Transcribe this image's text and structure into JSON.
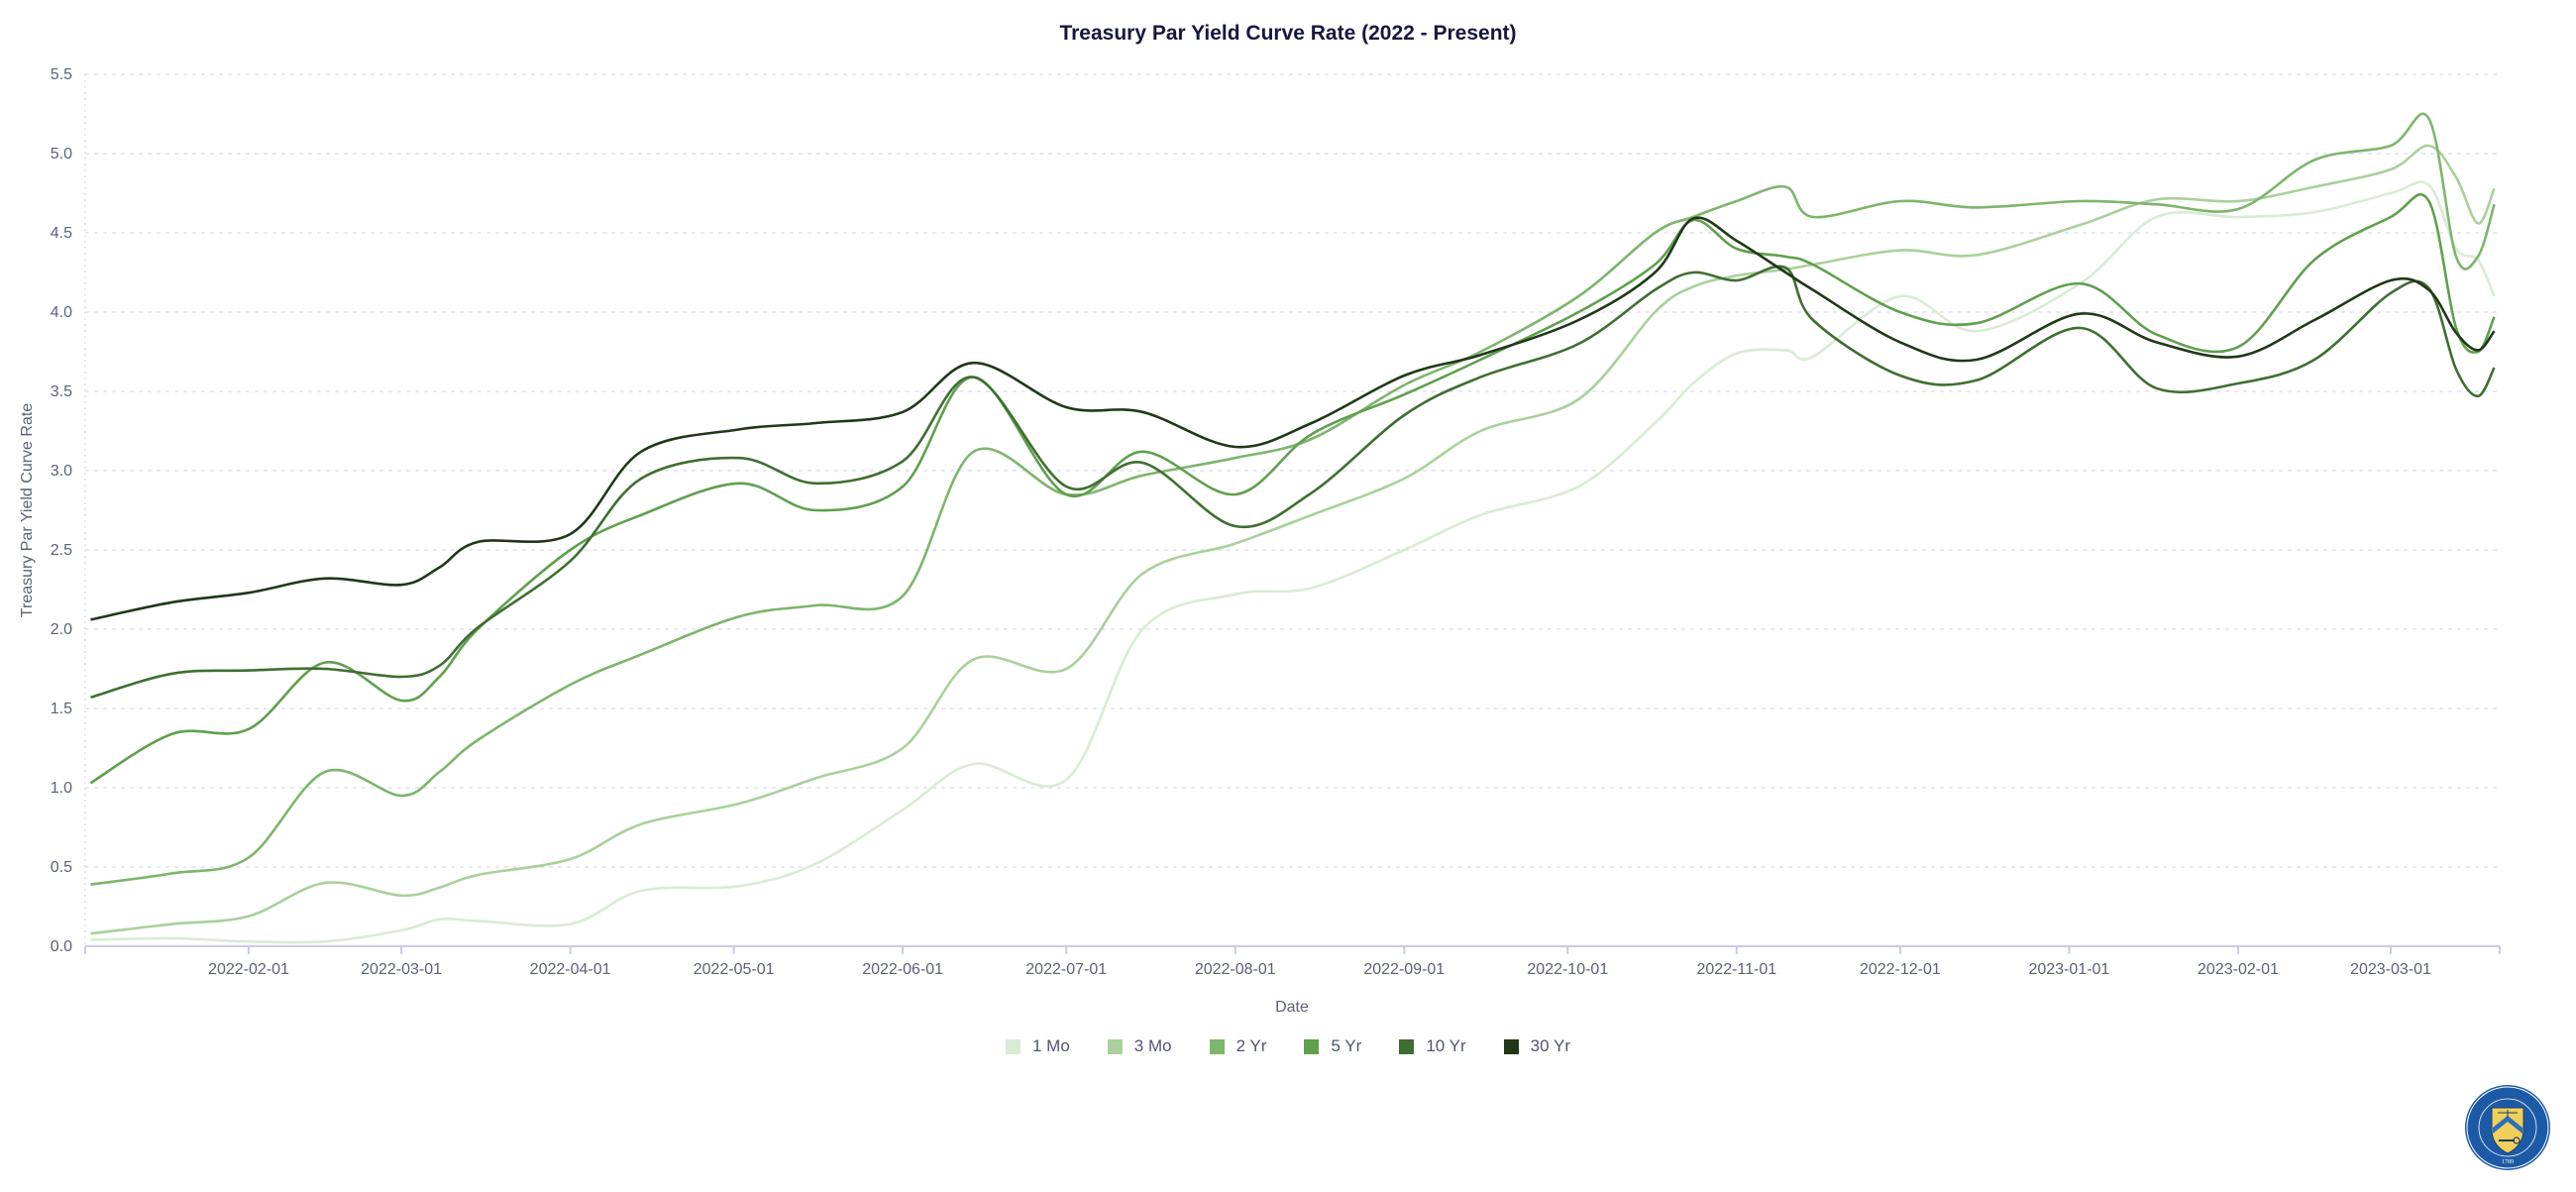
{
  "chart_data": {
    "type": "line",
    "title": "Treasury Par Yield Curve Rate (2022 - Present)",
    "xlabel": "Date",
    "ylabel": "Treasury Par Yield Curve Rate",
    "xlim": [
      "2022-01-02",
      "2023-03-21"
    ],
    "ylim": [
      0,
      5.5
    ],
    "yticks": [
      "0.0",
      "0.5",
      "1.0",
      "1.5",
      "2.0",
      "2.5",
      "3.0",
      "3.5",
      "4.0",
      "4.5",
      "5.0",
      "5.5"
    ],
    "xticks": [
      "2022-02-01",
      "2022-03-01",
      "2022-04-01",
      "2022-05-01",
      "2022-06-01",
      "2022-07-01",
      "2022-08-01",
      "2022-09-01",
      "2022-10-01",
      "2022-11-01",
      "2022-12-01",
      "2023-01-01",
      "2023-02-01",
      "2023-03-01"
    ],
    "grid": true,
    "legend_position": "bottom",
    "x": [
      "2022-01-03",
      "2022-01-18",
      "2022-02-01",
      "2022-02-15",
      "2022-03-01",
      "2022-03-08",
      "2022-03-15",
      "2022-04-01",
      "2022-04-14",
      "2022-05-02",
      "2022-05-16",
      "2022-06-01",
      "2022-06-14",
      "2022-07-01",
      "2022-07-15",
      "2022-08-01",
      "2022-08-15",
      "2022-09-01",
      "2022-09-15",
      "2022-10-03",
      "2022-10-17",
      "2022-10-24",
      "2022-11-01",
      "2022-11-10",
      "2022-11-15",
      "2022-12-01",
      "2022-12-15",
      "2023-01-03",
      "2023-01-17",
      "2023-02-01",
      "2023-02-15",
      "2023-03-01",
      "2023-03-08",
      "2023-03-13",
      "2023-03-17",
      "2023-03-20"
    ],
    "series": [
      {
        "name": "1 Mo",
        "color": "#d9ebd5",
        "values": [
          0.04,
          0.05,
          0.03,
          0.03,
          0.1,
          0.17,
          0.16,
          0.14,
          0.35,
          0.38,
          0.52,
          0.86,
          1.15,
          1.05,
          2.0,
          2.22,
          2.26,
          2.5,
          2.72,
          2.9,
          3.3,
          3.55,
          3.74,
          3.76,
          3.72,
          4.1,
          3.88,
          4.18,
          4.6,
          4.6,
          4.63,
          4.75,
          4.8,
          4.4,
          4.33,
          4.1
        ]
      },
      {
        "name": "3 Mo",
        "color": "#a9d09b",
        "values": [
          0.08,
          0.14,
          0.19,
          0.4,
          0.32,
          0.37,
          0.45,
          0.55,
          0.77,
          0.9,
          1.06,
          1.25,
          1.81,
          1.75,
          2.35,
          2.54,
          2.72,
          2.95,
          3.25,
          3.45,
          4.0,
          4.16,
          4.23,
          4.27,
          4.3,
          4.39,
          4.36,
          4.55,
          4.71,
          4.7,
          4.79,
          4.9,
          5.05,
          4.85,
          4.56,
          4.78
        ]
      },
      {
        "name": "2 Yr",
        "color": "#7db56c",
        "values": [
          0.39,
          0.46,
          0.56,
          1.1,
          0.95,
          1.1,
          1.3,
          1.65,
          1.84,
          2.08,
          2.15,
          2.21,
          3.12,
          2.85,
          2.97,
          3.08,
          3.2,
          3.54,
          3.75,
          4.1,
          4.5,
          4.6,
          4.7,
          4.79,
          4.6,
          4.7,
          4.66,
          4.7,
          4.68,
          4.65,
          4.96,
          5.05,
          5.22,
          4.35,
          4.35,
          4.68
        ]
      },
      {
        "name": "5 Yr",
        "color": "#5fa04d",
        "values": [
          1.03,
          1.34,
          1.37,
          1.79,
          1.55,
          1.7,
          2.0,
          2.5,
          2.72,
          2.92,
          2.75,
          2.9,
          3.59,
          2.85,
          3.12,
          2.85,
          3.23,
          3.48,
          3.7,
          4.0,
          4.3,
          4.58,
          4.4,
          4.35,
          4.3,
          4.0,
          3.93,
          4.18,
          3.86,
          3.78,
          4.33,
          4.6,
          4.7,
          3.9,
          3.75,
          3.97
        ]
      },
      {
        "name": "10 Yr",
        "color": "#406e32",
        "values": [
          1.57,
          1.72,
          1.74,
          1.75,
          1.7,
          1.77,
          2.01,
          2.43,
          2.95,
          3.08,
          2.92,
          3.06,
          3.59,
          2.9,
          3.05,
          2.65,
          2.86,
          3.35,
          3.59,
          3.8,
          4.14,
          4.25,
          4.2,
          4.28,
          3.95,
          3.6,
          3.57,
          3.9,
          3.52,
          3.55,
          3.7,
          4.12,
          4.15,
          3.64,
          3.47,
          3.65
        ]
      },
      {
        "name": "30 Yr",
        "color": "#203818",
        "values": [
          2.06,
          2.17,
          2.23,
          2.32,
          2.28,
          2.39,
          2.55,
          2.6,
          3.12,
          3.26,
          3.3,
          3.37,
          3.68,
          3.4,
          3.37,
          3.15,
          3.3,
          3.6,
          3.73,
          3.95,
          4.25,
          4.59,
          4.45,
          4.25,
          4.14,
          3.81,
          3.7,
          3.99,
          3.81,
          3.72,
          3.95,
          4.2,
          4.14,
          3.87,
          3.76,
          3.88
        ]
      }
    ]
  },
  "seal": {
    "text": "THE DEPARTMENT OF THE TREASURY",
    "year": "1789"
  }
}
